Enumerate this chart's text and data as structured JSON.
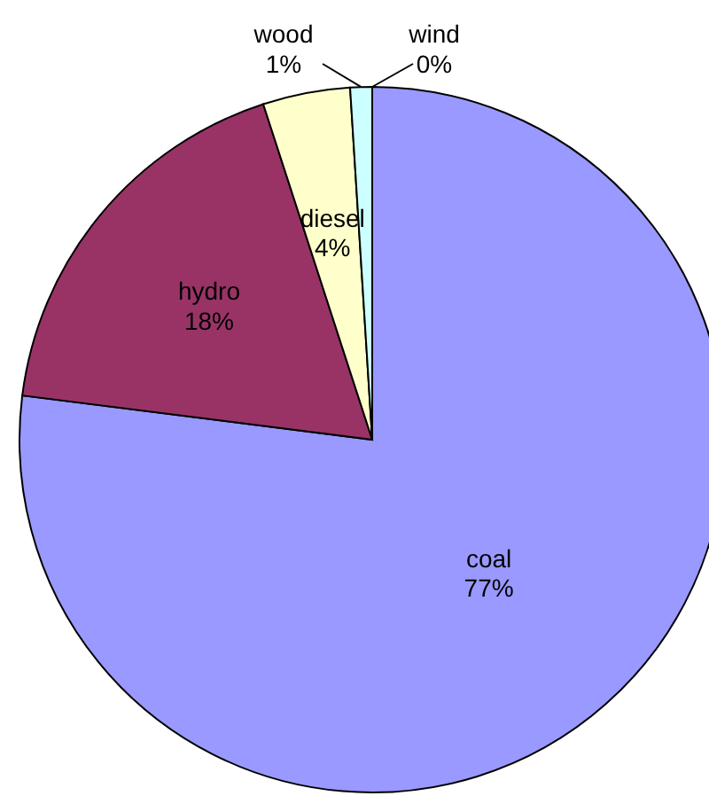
{
  "chart_data": {
    "type": "pie",
    "categories": [
      "coal",
      "hydro",
      "diesel",
      "wood",
      "wind"
    ],
    "values": [
      77,
      18,
      4,
      1,
      0
    ],
    "colors": [
      "#9999ff",
      "#993366",
      "#ffffcc",
      "#ccffff",
      "#660066"
    ],
    "value_labels": [
      "77%",
      "18%",
      "4%",
      "1%",
      "0%"
    ]
  }
}
